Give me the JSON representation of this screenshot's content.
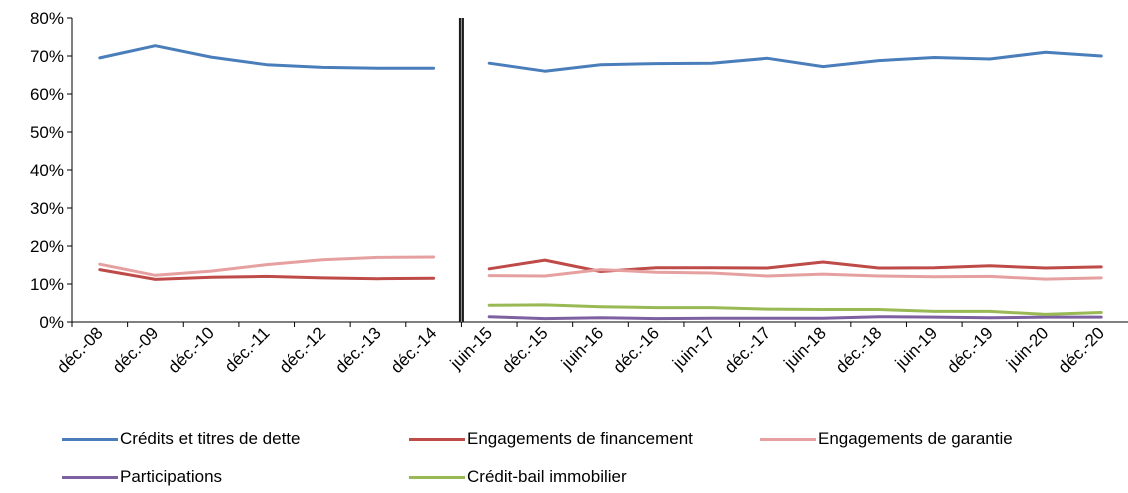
{
  "chart_data": {
    "type": "line",
    "x": [
      "déc.-08",
      "déc.-09",
      "déc.-10",
      "déc.-11",
      "déc.-12",
      "déc.-13",
      "déc.-14",
      "juin-15",
      "déc.-15",
      "juin-16",
      "déc.-16",
      "juin-17",
      "déc.-17",
      "juin-18",
      "déc.-18",
      "juin-19",
      "déc.-19",
      "juin-20",
      "déc.-20"
    ],
    "y_ticks": [
      "0%",
      "10%",
      "20%",
      "30%",
      "40%",
      "50%",
      "60%",
      "70%",
      "80%"
    ],
    "ylim": [
      0,
      80
    ],
    "grid": false,
    "legend_position": "bottom",
    "series": [
      {
        "name": "Crédits et titres de dette",
        "color": "#4a7ebb",
        "values": [
          69.5,
          72.7,
          69.7,
          67.7,
          67.0,
          66.8,
          66.8,
          68.1,
          66.0,
          67.7,
          68.0,
          68.1,
          69.4,
          67.2,
          68.8,
          69.6,
          69.2,
          71.0,
          70.0
        ]
      },
      {
        "name": "Engagements de financement",
        "color": "#be4b48",
        "values": [
          13.8,
          11.2,
          11.8,
          12.0,
          11.6,
          11.4,
          11.5,
          14.0,
          16.3,
          13.3,
          14.3,
          14.3,
          14.2,
          15.8,
          14.2,
          14.3,
          14.8,
          14.2,
          14.5
        ]
      },
      {
        "name": "Engagements de garantie",
        "color": "#e6a0a0",
        "values": [
          15.2,
          12.3,
          13.4,
          15.1,
          16.4,
          17.0,
          17.1,
          12.2,
          12.1,
          13.8,
          13.1,
          12.9,
          12.1,
          12.6,
          12.1,
          11.9,
          12.0,
          11.3,
          11.6
        ]
      },
      {
        "name": "Participations",
        "color": "#7d60a0",
        "values": [
          null,
          null,
          null,
          null,
          null,
          null,
          null,
          1.4,
          0.9,
          1.1,
          0.9,
          1.0,
          1.0,
          1.0,
          1.4,
          1.3,
          1.1,
          1.3,
          1.3
        ]
      },
      {
        "name": "Crédit-bail immobilier",
        "color": "#98b954",
        "values": [
          null,
          null,
          null,
          null,
          null,
          null,
          null,
          4.4,
          4.5,
          4.0,
          3.8,
          3.8,
          3.4,
          3.3,
          3.3,
          2.8,
          2.8,
          2.0,
          2.5
        ]
      }
    ],
    "gaps_after_index": [
      6
    ],
    "divider_between": [
      "déc.-14",
      "juin-15"
    ]
  }
}
